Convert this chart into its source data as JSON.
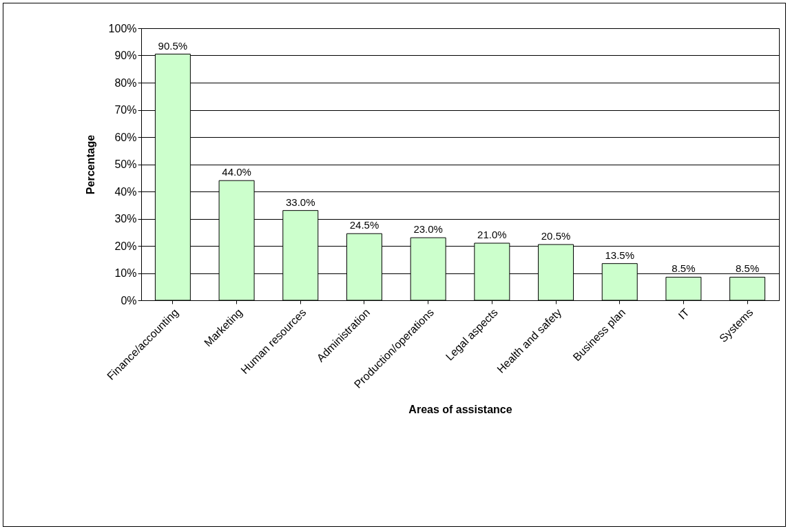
{
  "chart_data": {
    "type": "bar",
    "xlabel": "Areas of assistance",
    "ylabel": "Percentage",
    "categories": [
      "Finance/accounting",
      "Marketing",
      "Human resources",
      "Administration",
      "Production/operations",
      "Legal aspects",
      "Health and safety",
      "Business plan",
      "IT",
      "Systems"
    ],
    "values": [
      90.5,
      44.0,
      33.0,
      24.5,
      23.0,
      21.0,
      20.5,
      13.5,
      8.5,
      8.5
    ],
    "value_labels": [
      "90.5%",
      "44.0%",
      "33.0%",
      "24.5%",
      "23.0%",
      "21.0%",
      "20.5%",
      "13.5%",
      "8.5%",
      "8.5%"
    ],
    "color": "#ccffcc",
    "ylim": [
      0,
      100
    ],
    "yticks": [
      {
        "value": 0,
        "label": "0%"
      },
      {
        "value": 10,
        "label": "10%"
      },
      {
        "value": 20,
        "label": "20%"
      },
      {
        "value": 30,
        "label": "30%"
      },
      {
        "value": 40,
        "label": "40%"
      },
      {
        "value": 50,
        "label": "50%"
      },
      {
        "value": 60,
        "label": "60%"
      },
      {
        "value": 70,
        "label": "70%"
      },
      {
        "value": 80,
        "label": "80%"
      },
      {
        "value": 90,
        "label": "90%"
      },
      {
        "value": 100,
        "label": "100%"
      }
    ],
    "grid": "y"
  }
}
